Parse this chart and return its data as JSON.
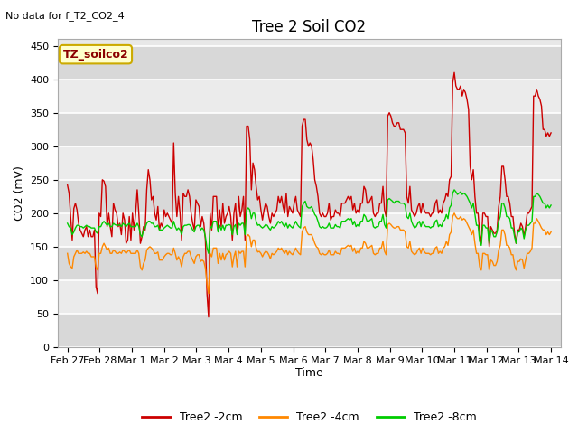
{
  "title": "Tree 2 Soil CO2",
  "subtitle": "No data for f_T2_CO2_4",
  "ylabel": "CO2 (mV)",
  "xlabel": "Time",
  "annotation": "TZ_soilco2",
  "yticks": [
    0,
    50,
    100,
    150,
    200,
    250,
    300,
    350,
    400,
    450
  ],
  "ylim": [
    0,
    460
  ],
  "xtick_labels": [
    "Feb 27",
    "Feb 28",
    "Mar 1",
    "Mar 2",
    "Mar 3",
    "Mar 4",
    "Mar 5",
    "Mar 6",
    "Mar 7",
    "Mar 8",
    "Mar 9",
    "Mar 10",
    "Mar 11",
    "Mar 12",
    "Mar 13",
    "Mar 14"
  ],
  "background_color": "#ffffff",
  "plot_bg_color": "#e8e8e8",
  "grid_color_dark": "#d0d0d0",
  "grid_color_light": "#f0f0f0",
  "line_color_2cm": "#cc0000",
  "line_color_4cm": "#ff8800",
  "line_color_8cm": "#00cc00",
  "legend_labels": [
    "Tree2 -2cm",
    "Tree2 -4cm",
    "Tree2 -8cm"
  ],
  "series_2cm": [
    242,
    230,
    195,
    160,
    207,
    215,
    205,
    185,
    175,
    170,
    165,
    175,
    180,
    165,
    175,
    165,
    165,
    175,
    90,
    80,
    200,
    195,
    250,
    248,
    240,
    180,
    200,
    180,
    165,
    215,
    205,
    200,
    180,
    185,
    168,
    200,
    190,
    155,
    160,
    195,
    160,
    200,
    175,
    200,
    235,
    200,
    155,
    165,
    180,
    175,
    235,
    265,
    250,
    220,
    225,
    200,
    190,
    210,
    175,
    185,
    180,
    205,
    195,
    200,
    195,
    190,
    185,
    305,
    230,
    195,
    225,
    200,
    160,
    230,
    225,
    225,
    235,
    225,
    200,
    185,
    175,
    220,
    215,
    210,
    180,
    195,
    185,
    160,
    80,
    45,
    200,
    175,
    225,
    225,
    225,
    175,
    205,
    180,
    215,
    185,
    195,
    200,
    210,
    195,
    160,
    200,
    215,
    170,
    225,
    195,
    205,
    225,
    160,
    330,
    330,
    310,
    235,
    275,
    265,
    240,
    220,
    225,
    205,
    190,
    205,
    215,
    210,
    195,
    185,
    200,
    195,
    200,
    205,
    225,
    215,
    225,
    210,
    200,
    230,
    195,
    210,
    205,
    200,
    215,
    225,
    205,
    200,
    195,
    330,
    340,
    340,
    310,
    300,
    305,
    300,
    280,
    250,
    240,
    225,
    200,
    195,
    200,
    195,
    195,
    200,
    215,
    190,
    195,
    195,
    205,
    200,
    200,
    195,
    215,
    215,
    215,
    220,
    225,
    220,
    225,
    205,
    215,
    200,
    205,
    200,
    215,
    215,
    240,
    235,
    215,
    215,
    220,
    225,
    200,
    195,
    200,
    200,
    215,
    215,
    240,
    205,
    195,
    345,
    350,
    345,
    335,
    330,
    330,
    335,
    335,
    325,
    325,
    325,
    320,
    225,
    215,
    240,
    205,
    200,
    195,
    200,
    210,
    215,
    200,
    215,
    205,
    200,
    200,
    200,
    195,
    200,
    200,
    215,
    220,
    200,
    205,
    200,
    215,
    220,
    230,
    225,
    250,
    255,
    395,
    410,
    390,
    385,
    385,
    390,
    375,
    385,
    380,
    370,
    355,
    270,
    250,
    265,
    225,
    200,
    200,
    170,
    155,
    200,
    200,
    195,
    195,
    150,
    180,
    175,
    170,
    170,
    175,
    210,
    225,
    270,
    270,
    250,
    225,
    225,
    215,
    195,
    195,
    170,
    155,
    175,
    175,
    185,
    180,
    165,
    180,
    200,
    200,
    205,
    210,
    375,
    375,
    385,
    375,
    370,
    360,
    325,
    325,
    315,
    320,
    315,
    320
  ],
  "series_4cm": [
    140,
    125,
    120,
    118,
    135,
    140,
    145,
    140,
    140,
    140,
    142,
    140,
    143,
    140,
    140,
    135,
    135,
    135,
    120,
    115,
    140,
    140,
    150,
    155,
    150,
    145,
    148,
    140,
    140,
    145,
    143,
    140,
    140,
    142,
    140,
    145,
    143,
    140,
    143,
    145,
    140,
    140,
    140,
    140,
    145,
    140,
    120,
    115,
    125,
    130,
    145,
    148,
    150,
    148,
    145,
    140,
    140,
    142,
    130,
    130,
    130,
    135,
    138,
    140,
    140,
    138,
    138,
    148,
    140,
    130,
    135,
    130,
    120,
    135,
    140,
    140,
    143,
    143,
    135,
    130,
    125,
    135,
    138,
    138,
    128,
    130,
    128,
    118,
    95,
    80,
    140,
    135,
    148,
    148,
    148,
    125,
    140,
    130,
    140,
    130,
    138,
    140,
    143,
    140,
    120,
    135,
    143,
    120,
    143,
    140,
    143,
    143,
    120,
    165,
    168,
    165,
    150,
    160,
    160,
    148,
    142,
    143,
    140,
    135,
    140,
    143,
    142,
    138,
    132,
    140,
    138,
    140,
    143,
    148,
    145,
    148,
    143,
    140,
    145,
    138,
    143,
    140,
    138,
    143,
    148,
    143,
    140,
    138,
    172,
    178,
    180,
    172,
    168,
    168,
    168,
    162,
    155,
    150,
    148,
    140,
    138,
    140,
    138,
    138,
    140,
    145,
    138,
    138,
    138,
    143,
    140,
    140,
    138,
    148,
    148,
    148,
    150,
    152,
    150,
    152,
    143,
    148,
    140,
    143,
    140,
    148,
    148,
    158,
    155,
    148,
    148,
    150,
    152,
    140,
    138,
    140,
    140,
    148,
    148,
    158,
    143,
    138,
    183,
    185,
    183,
    180,
    178,
    178,
    180,
    180,
    175,
    175,
    175,
    172,
    150,
    148,
    158,
    143,
    140,
    138,
    140,
    145,
    148,
    140,
    148,
    143,
    140,
    140,
    140,
    138,
    140,
    140,
    148,
    150,
    140,
    143,
    140,
    148,
    150,
    158,
    152,
    168,
    172,
    195,
    200,
    195,
    192,
    192,
    195,
    190,
    192,
    190,
    185,
    180,
    175,
    168,
    175,
    155,
    140,
    140,
    120,
    115,
    140,
    140,
    138,
    138,
    115,
    130,
    128,
    122,
    122,
    128,
    145,
    152,
    175,
    175,
    168,
    152,
    152,
    148,
    138,
    138,
    122,
    115,
    128,
    128,
    132,
    130,
    118,
    130,
    140,
    140,
    143,
    148,
    185,
    185,
    192,
    188,
    183,
    178,
    175,
    175,
    168,
    172,
    168,
    172
  ],
  "series_8cm": [
    185,
    180,
    178,
    168,
    172,
    178,
    182,
    182,
    180,
    180,
    178,
    180,
    182,
    180,
    180,
    178,
    178,
    178,
    172,
    170,
    180,
    180,
    185,
    188,
    185,
    182,
    185,
    180,
    180,
    185,
    183,
    182,
    182,
    183,
    180,
    185,
    183,
    180,
    183,
    185,
    180,
    180,
    180,
    180,
    185,
    180,
    168,
    165,
    175,
    178,
    185,
    188,
    188,
    185,
    185,
    180,
    180,
    182,
    175,
    175,
    175,
    178,
    180,
    182,
    180,
    178,
    178,
    188,
    180,
    175,
    178,
    175,
    168,
    180,
    182,
    182,
    183,
    183,
    180,
    175,
    172,
    180,
    182,
    182,
    175,
    178,
    175,
    165,
    148,
    140,
    180,
    178,
    188,
    188,
    188,
    172,
    182,
    175,
    182,
    175,
    182,
    182,
    183,
    182,
    168,
    180,
    183,
    168,
    185,
    182,
    185,
    185,
    168,
    205,
    208,
    205,
    192,
    200,
    200,
    188,
    182,
    183,
    180,
    178,
    180,
    183,
    182,
    178,
    175,
    180,
    178,
    180,
    183,
    188,
    185,
    188,
    183,
    180,
    185,
    178,
    183,
    180,
    178,
    183,
    188,
    183,
    180,
    178,
    210,
    215,
    218,
    210,
    208,
    208,
    210,
    204,
    198,
    195,
    188,
    180,
    178,
    180,
    178,
    178,
    180,
    185,
    178,
    178,
    178,
    183,
    180,
    180,
    178,
    188,
    188,
    188,
    190,
    192,
    190,
    192,
    183,
    188,
    180,
    183,
    180,
    188,
    188,
    198,
    195,
    188,
    188,
    190,
    192,
    180,
    178,
    180,
    180,
    188,
    188,
    198,
    183,
    178,
    220,
    222,
    220,
    218,
    215,
    218,
    218,
    218,
    215,
    215,
    215,
    212,
    195,
    192,
    200,
    188,
    182,
    178,
    180,
    185,
    188,
    180,
    188,
    183,
    180,
    180,
    180,
    178,
    180,
    180,
    188,
    190,
    180,
    183,
    180,
    188,
    190,
    198,
    192,
    208,
    212,
    230,
    235,
    232,
    228,
    230,
    232,
    228,
    230,
    228,
    225,
    220,
    215,
    208,
    215,
    198,
    182,
    182,
    158,
    152,
    182,
    182,
    178,
    178,
    155,
    175,
    172,
    165,
    165,
    172,
    188,
    195,
    215,
    215,
    208,
    195,
    195,
    192,
    178,
    178,
    165,
    155,
    172,
    172,
    178,
    175,
    162,
    175,
    182,
    182,
    185,
    188,
    225,
    225,
    230,
    228,
    225,
    220,
    215,
    215,
    208,
    212,
    208,
    212
  ]
}
